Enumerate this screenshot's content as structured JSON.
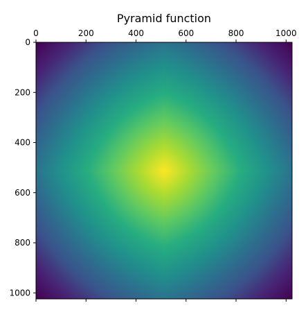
{
  "chart_data": {
    "type": "heatmap",
    "title": "Pyramid function",
    "xlabel": "",
    "ylabel": "",
    "xlim": [
      0,
      1024
    ],
    "ylim": [
      0,
      1024
    ],
    "x_axis_position": "top",
    "y_axis_inverted": true,
    "x_ticks": [
      {
        "value": 0,
        "label": "0"
      },
      {
        "value": 200,
        "label": "200"
      },
      {
        "value": 400,
        "label": "400"
      },
      {
        "value": 600,
        "label": "600"
      },
      {
        "value": 800,
        "label": "800"
      },
      {
        "value": 1000,
        "label": "1000"
      }
    ],
    "y_ticks": [
      {
        "value": 0,
        "label": "0"
      },
      {
        "value": 200,
        "label": "200"
      },
      {
        "value": 400,
        "label": "400"
      },
      {
        "value": 600,
        "label": "600"
      },
      {
        "value": 800,
        "label": "800"
      },
      {
        "value": 1000,
        "label": "1000"
      }
    ],
    "grid": false,
    "colormap": "viridis",
    "function": "pyramid",
    "center": [
      512,
      512
    ],
    "colors": {
      "low": "#440154",
      "mid_low": "#3b528b",
      "mid": "#21918c",
      "mid_high": "#5ec962",
      "high": "#fde725"
    }
  }
}
